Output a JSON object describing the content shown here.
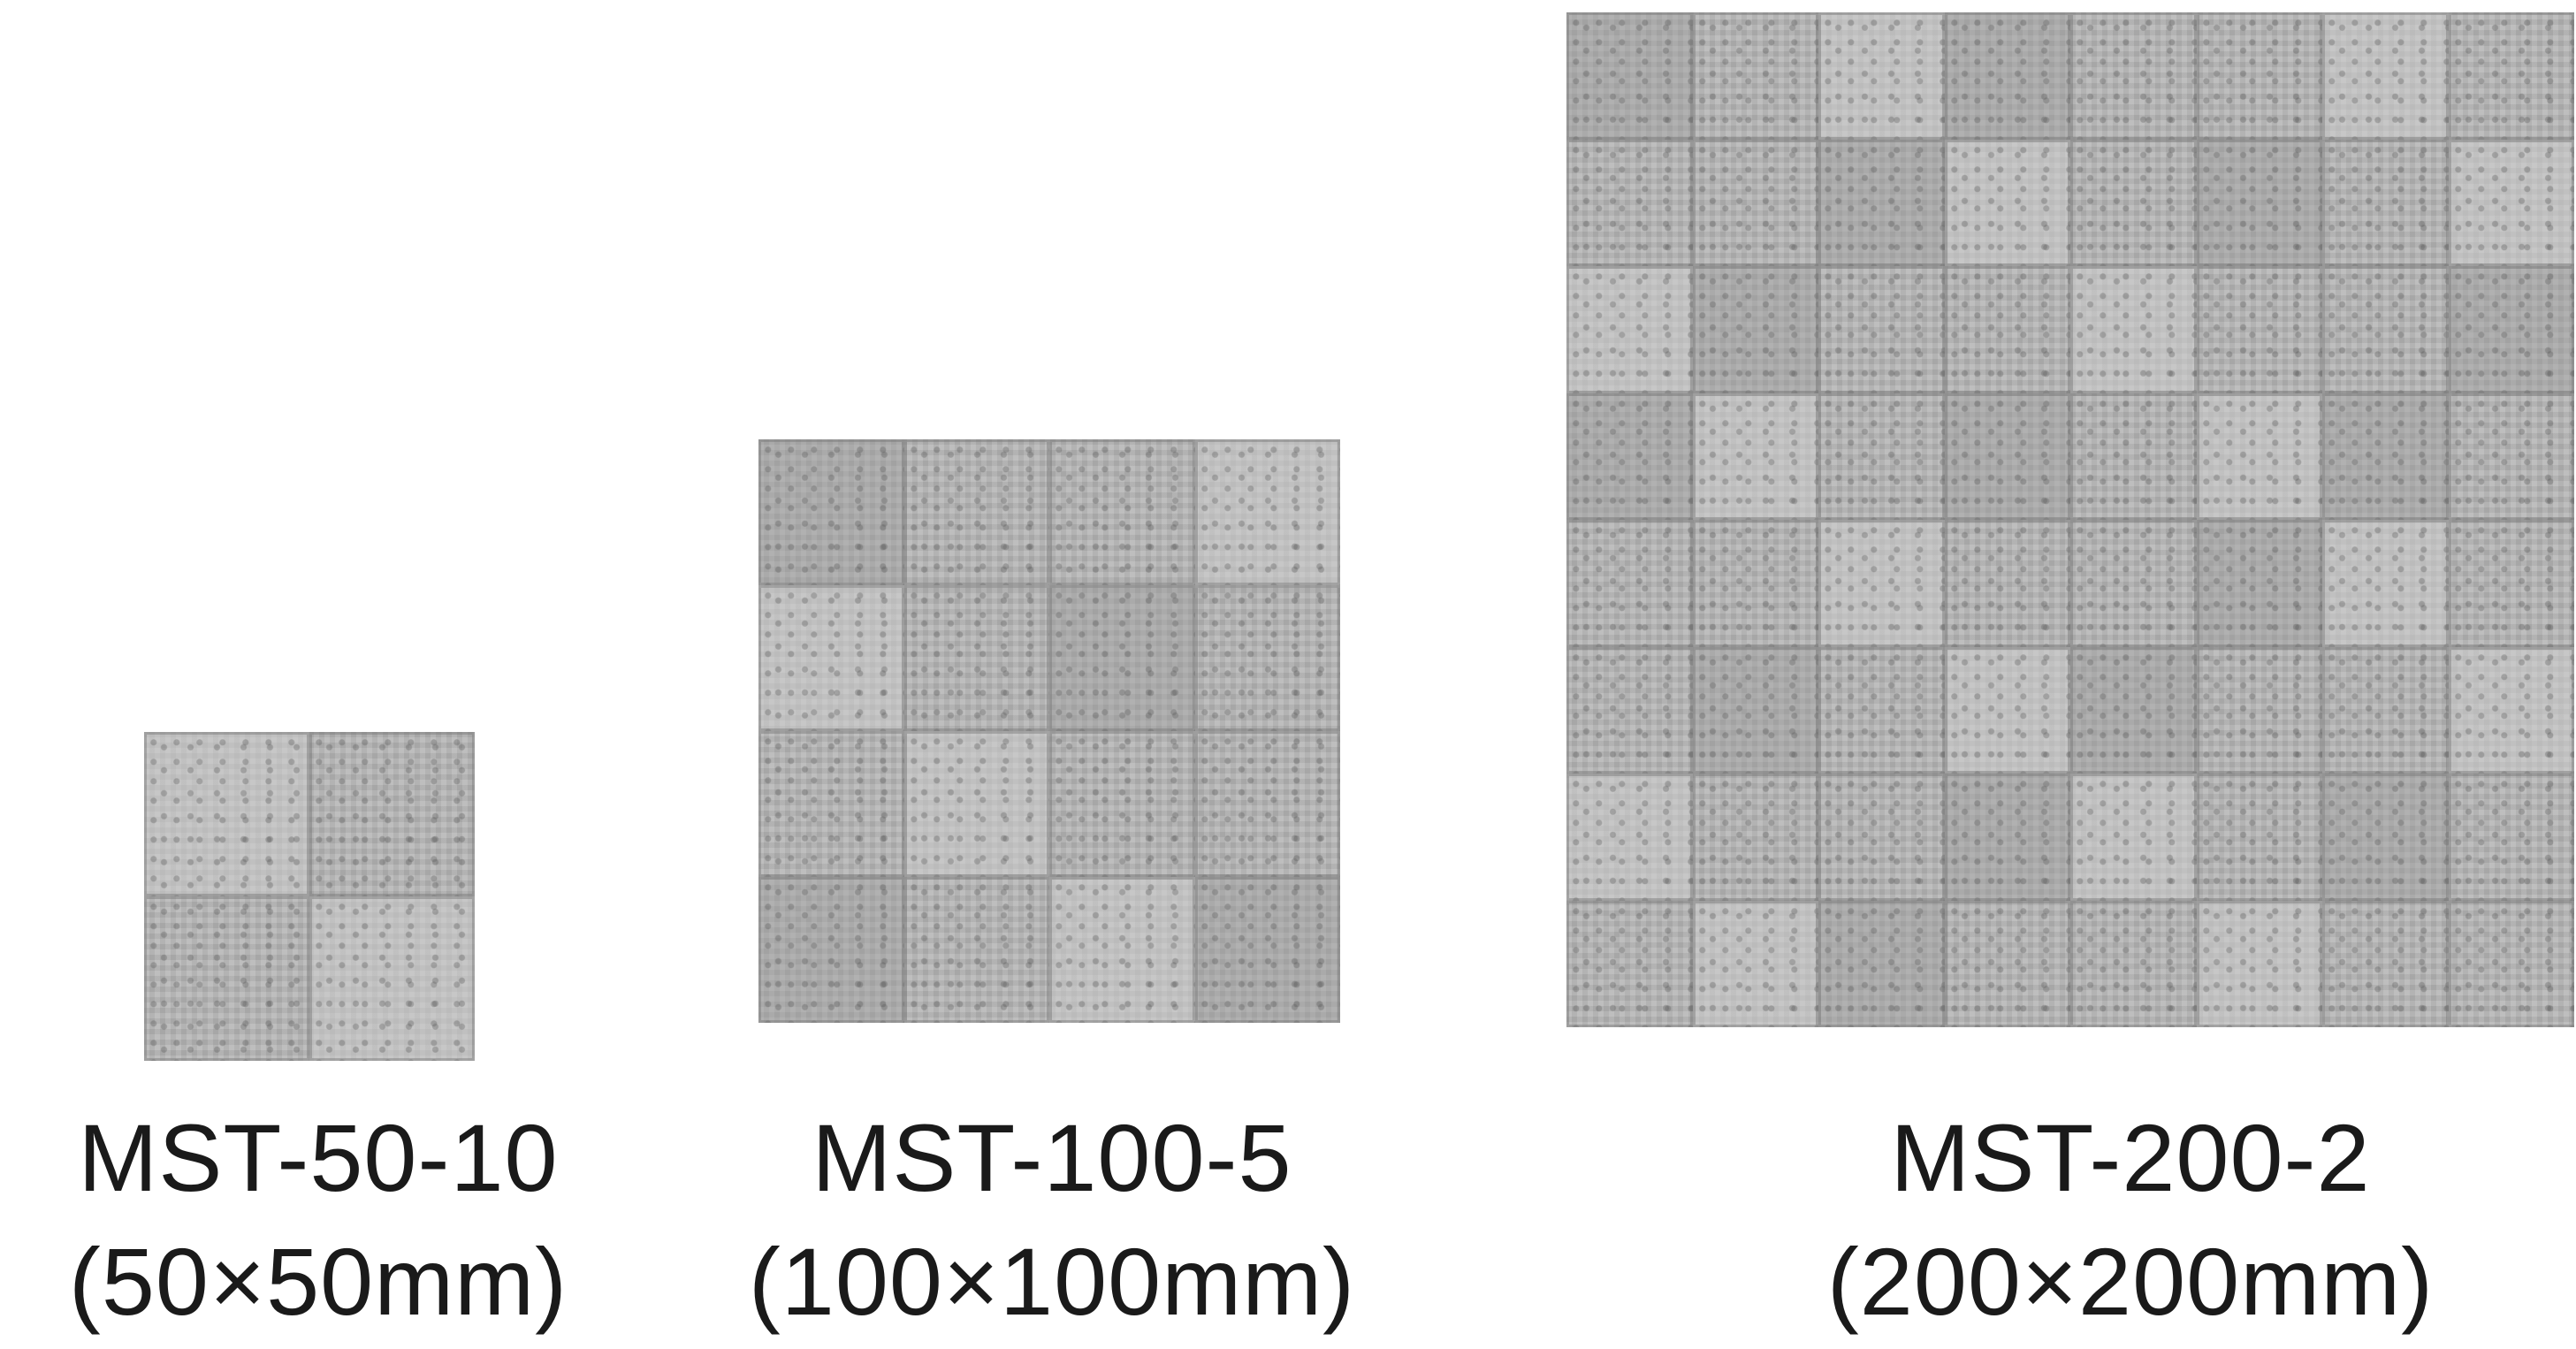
{
  "samples": [
    {
      "model": "MST-50-10",
      "size": "(50×50mm)"
    },
    {
      "model": "MST-100-5",
      "size": "(100×100mm)"
    },
    {
      "model": "MST-200-2",
      "size": "(200×200mm)"
    }
  ],
  "colors": {
    "sample_fill": "#a8a8a8",
    "text": "#1a1a1a",
    "background": "#ffffff"
  }
}
